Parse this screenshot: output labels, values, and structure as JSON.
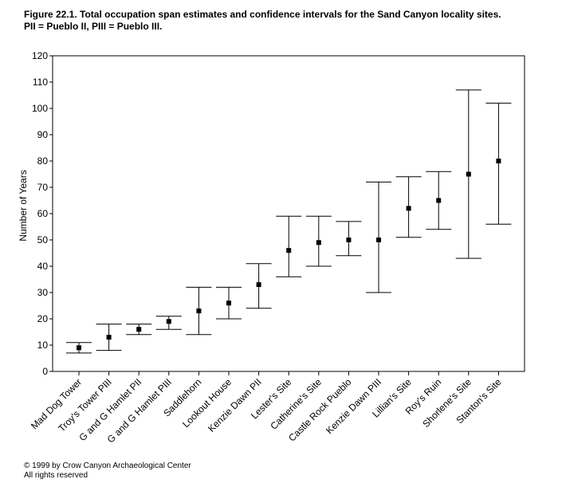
{
  "figure": {
    "title_line1": "Figure 22.1.  Total occupation span estimates and confidence intervals for the Sand Canyon locality sites.",
    "title_line2": "PII = Pueblo II, PIII = Pueblo III."
  },
  "chart_data": {
    "type": "scatter",
    "subtype": "point-with-error-bars",
    "ylabel": "Number of Years",
    "xlabel": "",
    "ylim": [
      0,
      120
    ],
    "yticks": [
      0,
      10,
      20,
      30,
      40,
      50,
      60,
      70,
      80,
      90,
      100,
      110,
      120
    ],
    "grid": false,
    "legend": "none",
    "colors": {
      "marker": "#000000",
      "line": "#000000",
      "background": "#ffffff"
    },
    "categories": [
      "Mad Dog Tower",
      "Troy's Tower PIII",
      "G and G Hamlet PII",
      "G and G Hamlet PIII",
      "Saddlehorn",
      "Lookout House",
      "Kenzie Dawn PII",
      "Lester's Site",
      "Catherine's Site",
      "Castle Rock Pueblo",
      "Kenzie Dawn PIII",
      "Lillian's Site",
      "Roy's Ruin",
      "Shorlene's Site",
      "Stanton's Site"
    ],
    "estimate": [
      9,
      13,
      16,
      19,
      23,
      26,
      33,
      46,
      49,
      50,
      50,
      62,
      65,
      75,
      80
    ],
    "lower": [
      7,
      8,
      14,
      16,
      14,
      20,
      24,
      36,
      40,
      44,
      30,
      51,
      54,
      43,
      56
    ],
    "upper": [
      11,
      18,
      18,
      21,
      32,
      32,
      41,
      59,
      59,
      57,
      72,
      74,
      76,
      107,
      102
    ]
  },
  "footer": {
    "copyright": "© 1999 by Crow Canyon Archaeological Center",
    "rights": "All rights reserved"
  }
}
